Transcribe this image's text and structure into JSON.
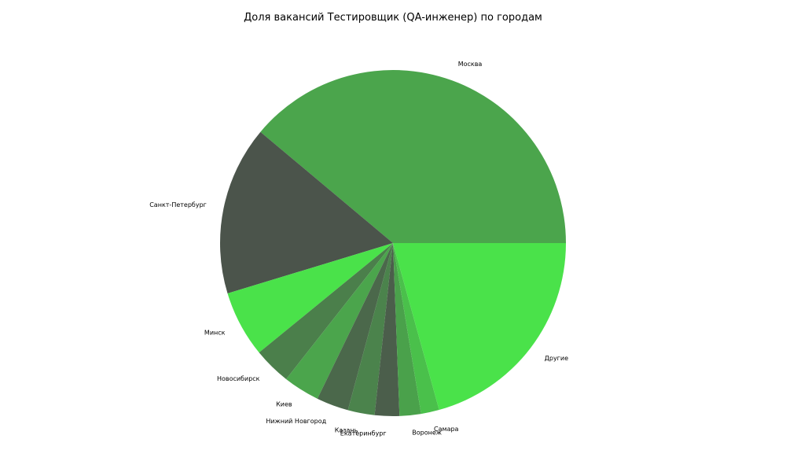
{
  "chart_data": {
    "type": "pie",
    "title": "Доля вакансий Тестировщик (QA-инженер) по городам",
    "start_angle_deg": 0,
    "direction": "counterclockwise",
    "slices": [
      {
        "label": "Москва",
        "value": 38.9,
        "color": "#4ba54c"
      },
      {
        "label": "Санкт-Петербург",
        "value": 15.8,
        "color": "#4b544b"
      },
      {
        "label": "Минск",
        "value": 6.2,
        "color": "#4ae24a"
      },
      {
        "label": "Новосибирск",
        "value": 3.5,
        "color": "#4b7f4b"
      },
      {
        "label": "Киев",
        "value": 3.4,
        "color": "#4ba54c"
      },
      {
        "label": "Нижний Новгород",
        "value": 3.0,
        "color": "#4b684b"
      },
      {
        "label": "Казань",
        "value": 2.5,
        "color": "#4b834c"
      },
      {
        "label": "Екатеринбург",
        "value": 2.3,
        "color": "#4b5e4b"
      },
      {
        "label": "Воронеж",
        "value": 2.0,
        "color": "#4aa14b"
      },
      {
        "label": "Самара",
        "value": 1.7,
        "color": "#4ac04b"
      },
      {
        "label": "Другие",
        "value": 20.7,
        "color": "#4ae24a"
      }
    ]
  }
}
